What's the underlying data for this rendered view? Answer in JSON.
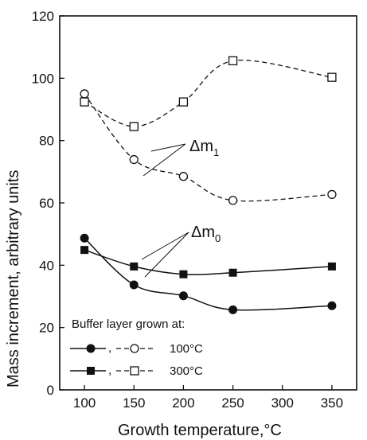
{
  "chart_data": {
    "type": "scatter",
    "xlabel": "Growth temperature,",
    "xlabel_unit": "°C",
    "ylabel": "Mass increment, arbitrary units",
    "xlim": [
      75,
      375
    ],
    "ylim": [
      0,
      120
    ],
    "x_ticks": [
      100,
      150,
      200,
      250,
      300,
      350
    ],
    "y_ticks": [
      0,
      20,
      40,
      60,
      80,
      100,
      120
    ],
    "x_tick_labels": [
      "100",
      "150",
      "200",
      "250",
      "300",
      "350"
    ],
    "y_tick_labels": [
      "0",
      "20",
      "40",
      "60",
      "80",
      "100",
      "120"
    ],
    "series": [
      {
        "marker": "filled-circle",
        "line": "solid",
        "x": [
          100,
          150,
          200,
          250,
          350
        ],
        "y": [
          48.7,
          33.7,
          30.2,
          25.7,
          27.0
        ]
      },
      {
        "marker": "filled-square",
        "line": "solid",
        "x": [
          100,
          150,
          200,
          250,
          350
        ],
        "y": [
          44.9,
          39.6,
          37.1,
          37.6,
          39.6
        ]
      },
      {
        "marker": "open-circle",
        "line": "dashed",
        "x": [
          100,
          150,
          200,
          250,
          350
        ],
        "y": [
          95.0,
          73.9,
          68.5,
          60.8,
          62.7
        ]
      },
      {
        "marker": "open-square",
        "line": "dashed",
        "x": [
          100,
          150,
          200,
          250,
          350
        ],
        "y": [
          92.4,
          84.5,
          92.4,
          105.6,
          100.3
        ]
      }
    ],
    "annotations": [
      {
        "text": "Δm",
        "sub": "1"
      },
      {
        "text": "Δm",
        "sub": "0"
      }
    ],
    "legend": {
      "title": "Buffer layer grown at:",
      "entries": [
        {
          "label": "100°C"
        },
        {
          "label": "300°C"
        }
      ],
      "placement": "bottom-left"
    }
  }
}
